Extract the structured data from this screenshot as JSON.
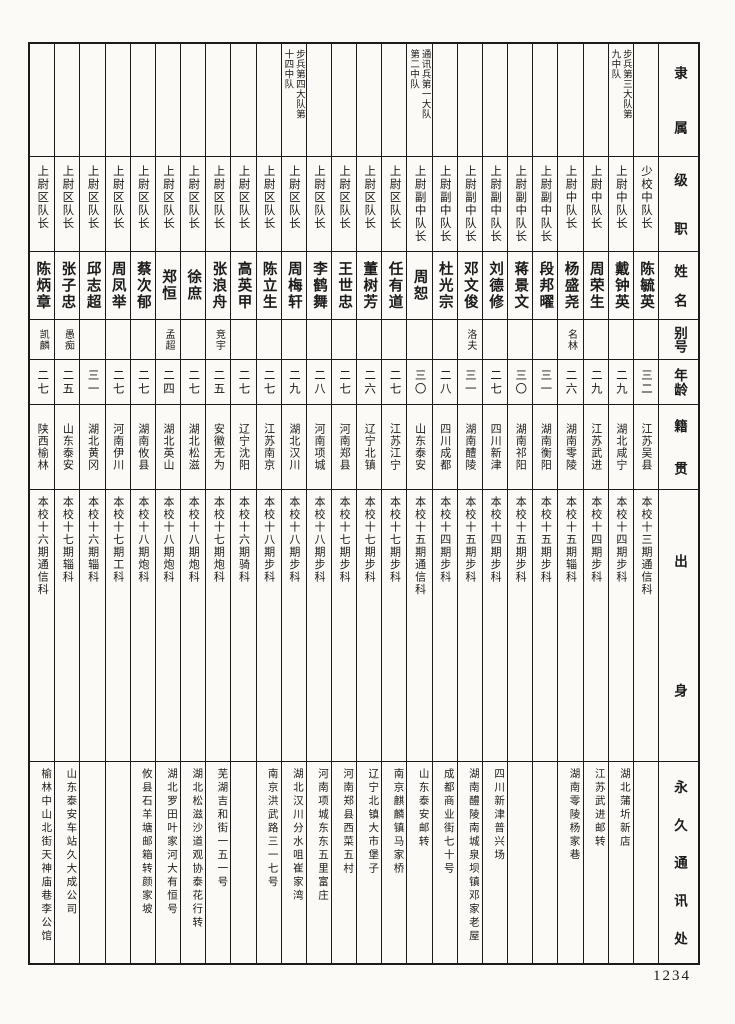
{
  "page_number": "1234",
  "colors": {
    "ink": "#1b1b1b",
    "paper": "#fbfaf6"
  },
  "headers": {
    "affiliation": "隶属",
    "rank": "级职",
    "name": "姓名",
    "alias": "别号",
    "age": "年龄",
    "native_place": "籍贯",
    "background": "出身",
    "address": "永久通讯处"
  },
  "people": [
    {
      "affiliation": "",
      "rank": "少校中队长",
      "name": "陈毓英",
      "alias": "",
      "age": "三二",
      "native_place": "江苏吴县",
      "background": "本校十三期通信科",
      "address": ""
    },
    {
      "affiliation": "步兵第三大队第九中队",
      "rank": "上尉中队长",
      "name": "戴钟英",
      "alias": "",
      "age": "二九",
      "native_place": "湖北咸宁",
      "background": "本校十四期步科",
      "address": "湖北蒲圻新店"
    },
    {
      "affiliation": "",
      "rank": "上尉中队长",
      "name": "周荣生",
      "alias": "",
      "age": "二九",
      "native_place": "江苏武进",
      "background": "本校十四期步科",
      "address": "江苏武进邮转"
    },
    {
      "affiliation": "",
      "rank": "上尉中队长",
      "name": "杨盛尧",
      "alias": "名林",
      "age": "二六",
      "native_place": "湖南零陵",
      "background": "本校十五期辎科",
      "address": "湖南零陵杨家巷"
    },
    {
      "affiliation": "",
      "rank": "上尉副中队长",
      "name": "段邦曜",
      "alias": "",
      "age": "三一",
      "native_place": "湖南衡阳",
      "background": "本校十五期步科",
      "address": ""
    },
    {
      "affiliation": "",
      "rank": "上尉副中队长",
      "name": "蒋景文",
      "alias": "",
      "age": "三〇",
      "native_place": "湖南祁阳",
      "background": "本校十五期步科",
      "address": ""
    },
    {
      "affiliation": "",
      "rank": "上尉副中队长",
      "name": "刘德修",
      "alias": "",
      "age": "二七",
      "native_place": "四川新津",
      "background": "本校十四期步科",
      "address": "四川新津普兴场"
    },
    {
      "affiliation": "",
      "rank": "上尉副中队长",
      "name": "邓文俊",
      "alias": "洛夫",
      "age": "三一",
      "native_place": "湖南醴陵",
      "background": "本校十五期步科",
      "address": "湖南醴陵南城泉坝镇邓家老屋"
    },
    {
      "affiliation": "",
      "rank": "上尉副中队长",
      "name": "杜光宗",
      "alias": "",
      "age": "二八",
      "native_place": "四川成都",
      "background": "本校十四期步科",
      "address": "成都商业街七十号"
    },
    {
      "affiliation": "通讯兵第一大队第二中队",
      "rank": "上尉副中队长",
      "name": "周恕",
      "alias": "",
      "age": "三〇",
      "native_place": "山东泰安",
      "background": "本校十五期通信科",
      "address": "山东泰安邮转"
    },
    {
      "affiliation": "",
      "rank": "上尉区队长",
      "name": "任有道",
      "alias": "",
      "age": "二七",
      "native_place": "江苏江宁",
      "background": "本校十七期步科",
      "address": "南京麒麟镇马家桥"
    },
    {
      "affiliation": "",
      "rank": "上尉区队长",
      "name": "董树芳",
      "alias": "",
      "age": "二六",
      "native_place": "辽宁北镇",
      "background": "本校十七期步科",
      "address": "辽宁北镇大市堡子"
    },
    {
      "affiliation": "",
      "rank": "上尉区队长",
      "name": "王世忠",
      "alias": "",
      "age": "二七",
      "native_place": "河南郑县",
      "background": "本校十七期步科",
      "address": "河南郑县西菜五村"
    },
    {
      "affiliation": "",
      "rank": "上尉区队长",
      "name": "李鹤舞",
      "alias": "",
      "age": "二八",
      "native_place": "河南项城",
      "background": "本校十八期步科",
      "address": "河南项城东东五里富庄"
    },
    {
      "affiliation": "步兵第四大队第十四中队",
      "rank": "上尉区队长",
      "name": "周梅轩",
      "alias": "",
      "age": "二九",
      "native_place": "湖北汉川",
      "background": "本校十八期步科",
      "address": "湖北汉川分水咀崔家湾"
    },
    {
      "affiliation": "",
      "rank": "上尉区队长",
      "name": "陈立生",
      "alias": "",
      "age": "二七",
      "native_place": "江苏南京",
      "background": "本校十八期步科",
      "address": "南京洪武路三一七号"
    },
    {
      "affiliation": "",
      "rank": "上尉区队长",
      "name": "高英甲",
      "alias": "",
      "age": "二七",
      "native_place": "辽宁沈阳",
      "background": "本校十六期骑科",
      "address": ""
    },
    {
      "affiliation": "",
      "rank": "上尉区队长",
      "name": "张浪舟",
      "alias": "竞宇",
      "age": "二五",
      "native_place": "安徽无为",
      "background": "本校十七期炮科",
      "address": "芜湖吉和街一五一号"
    },
    {
      "affiliation": "",
      "rank": "上尉区队长",
      "name": "徐庶",
      "alias": "",
      "age": "二七",
      "native_place": "湖北松滋",
      "background": "本校十八期炮科",
      "address": "湖北松滋沙道观协泰花行转"
    },
    {
      "affiliation": "",
      "rank": "上尉区队长",
      "name": "郑恒",
      "alias": "孟超",
      "age": "二四",
      "native_place": "湖北英山",
      "background": "本校十八期炮科",
      "address": "湖北罗田叶家河大有恒号"
    },
    {
      "affiliation": "",
      "rank": "上尉区队长",
      "name": "蔡次郁",
      "alias": "",
      "age": "二七",
      "native_place": "湖南攸县",
      "background": "本校十八期炮科",
      "address": "攸县石羊塘邮箱转颜家坡"
    },
    {
      "affiliation": "",
      "rank": "上尉区队长",
      "name": "周凤举",
      "alias": "",
      "age": "二七",
      "native_place": "河南伊川",
      "background": "本校十七期工科",
      "address": ""
    },
    {
      "affiliation": "",
      "rank": "上尉区队长",
      "name": "邱志超",
      "alias": "",
      "age": "三一",
      "native_place": "湖北黄冈",
      "background": "本校十六期辎科",
      "address": ""
    },
    {
      "affiliation": "",
      "rank": "上尉区队长",
      "name": "张子忠",
      "alias": "愚痴",
      "age": "二五",
      "native_place": "山东泰安",
      "background": "本校十七期辎科",
      "address": "山东泰安车站久大成公司"
    },
    {
      "affiliation": "",
      "rank": "上尉区队长",
      "name": "陈炳章",
      "alias": "凯麟",
      "age": "二七",
      "native_place": "陕西榆林",
      "background": "本校十六期通信科",
      "address": "榆林中山北街天神庙巷李公馆"
    }
  ]
}
